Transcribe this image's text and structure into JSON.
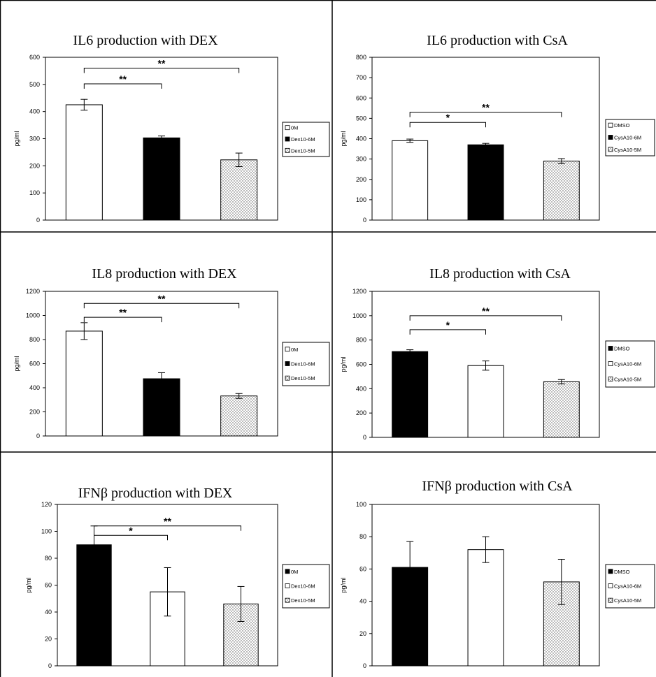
{
  "chart_data": [
    {
      "type": "bar",
      "title": "IL6 production with DEX",
      "ylabel": "pg/ml",
      "ylim": [
        0,
        600
      ],
      "yticks": [
        0,
        100,
        200,
        300,
        400,
        500,
        600
      ],
      "bars": [
        {
          "legend": "0M",
          "fill": "white",
          "value": 425,
          "error": 20
        },
        {
          "legend": "Dex10-6M",
          "fill": "black",
          "value": 303,
          "error": 7
        },
        {
          "legend": "Dex10-5M",
          "fill": "dots",
          "value": 222,
          "error": 25
        }
      ],
      "significance": [
        {
          "from": 0,
          "to": 1,
          "label": "**",
          "y": 502
        },
        {
          "from": 0,
          "to": 2,
          "label": "**",
          "y": 560
        }
      ]
    },
    {
      "type": "bar",
      "title": "IL6 production with CsA",
      "ylabel": "pg/ml",
      "ylim": [
        0,
        800
      ],
      "yticks": [
        0,
        100,
        200,
        300,
        400,
        500,
        600,
        700,
        800
      ],
      "bars": [
        {
          "legend": "DMSO",
          "fill": "white",
          "value": 390,
          "error": 8
        },
        {
          "legend": "CysA10-6M",
          "fill": "black",
          "value": 370,
          "error": 7
        },
        {
          "legend": "CysA10-5M",
          "fill": "dots",
          "value": 290,
          "error": 12
        }
      ],
      "significance": [
        {
          "from": 0,
          "to": 1,
          "label": "*",
          "y": 480
        },
        {
          "from": 0,
          "to": 2,
          "label": "**",
          "y": 530
        }
      ]
    },
    {
      "type": "bar",
      "title": "IL8 production with DEX",
      "ylabel": "pg/ml",
      "ylim": [
        0,
        1200
      ],
      "yticks": [
        0,
        200,
        400,
        600,
        800,
        1000,
        1200
      ],
      "bars": [
        {
          "legend": "0M",
          "fill": "white",
          "value": 870,
          "error": 70
        },
        {
          "legend": "Dex10-6M",
          "fill": "black",
          "value": 475,
          "error": 50
        },
        {
          "legend": "Dex10-5M",
          "fill": "dots",
          "value": 332,
          "error": 20
        }
      ],
      "significance": [
        {
          "from": 0,
          "to": 1,
          "label": "**",
          "y": 985
        },
        {
          "from": 0,
          "to": 2,
          "label": "**",
          "y": 1100
        }
      ]
    },
    {
      "type": "bar",
      "title": "IL8 production with CsA",
      "ylabel": "pg/ml",
      "ylim": [
        0,
        1200
      ],
      "yticks": [
        0,
        200,
        400,
        600,
        800,
        1000,
        1200
      ],
      "bars": [
        {
          "legend": "DMSO",
          "fill": "black",
          "value": 705,
          "error": 15
        },
        {
          "legend": "CysA10-6M",
          "fill": "white",
          "value": 590,
          "error": 38
        },
        {
          "legend": "CysA10-5M",
          "fill": "dots",
          "value": 457,
          "error": 18
        }
      ],
      "significance": [
        {
          "from": 0,
          "to": 1,
          "label": "*",
          "y": 885
        },
        {
          "from": 0,
          "to": 2,
          "label": "**",
          "y": 1000
        }
      ]
    },
    {
      "type": "bar",
      "title": "IFNβ production with DEX",
      "ylabel": "pg/ml",
      "ylim": [
        0,
        120
      ],
      "yticks": [
        0,
        20,
        40,
        60,
        80,
        100,
        120
      ],
      "bars": [
        {
          "legend": "0M",
          "fill": "black",
          "value": 90,
          "error": 14
        },
        {
          "legend": "Dex10-6M",
          "fill": "white",
          "value": 55,
          "error": 18
        },
        {
          "legend": "Dex10-5M",
          "fill": "dots",
          "value": 46,
          "error": 13
        }
      ],
      "significance": [
        {
          "from": 0,
          "to": 1,
          "label": "*",
          "y": 97
        },
        {
          "from": 0,
          "to": 2,
          "label": "**",
          "y": 104
        }
      ]
    },
    {
      "type": "bar",
      "title": "IFNβ production with CsA",
      "ylabel": "pg/ml",
      "ylim": [
        0,
        100
      ],
      "yticks": [
        0,
        20,
        40,
        60,
        80,
        100
      ],
      "bars": [
        {
          "legend": "DMSO",
          "fill": "black",
          "value": 61,
          "error": 16
        },
        {
          "legend": "CysA10-6M",
          "fill": "white",
          "value": 72,
          "error": 8
        },
        {
          "legend": "CysA10-5M",
          "fill": "dots",
          "value": 52,
          "error": 14
        }
      ],
      "significance": []
    }
  ]
}
